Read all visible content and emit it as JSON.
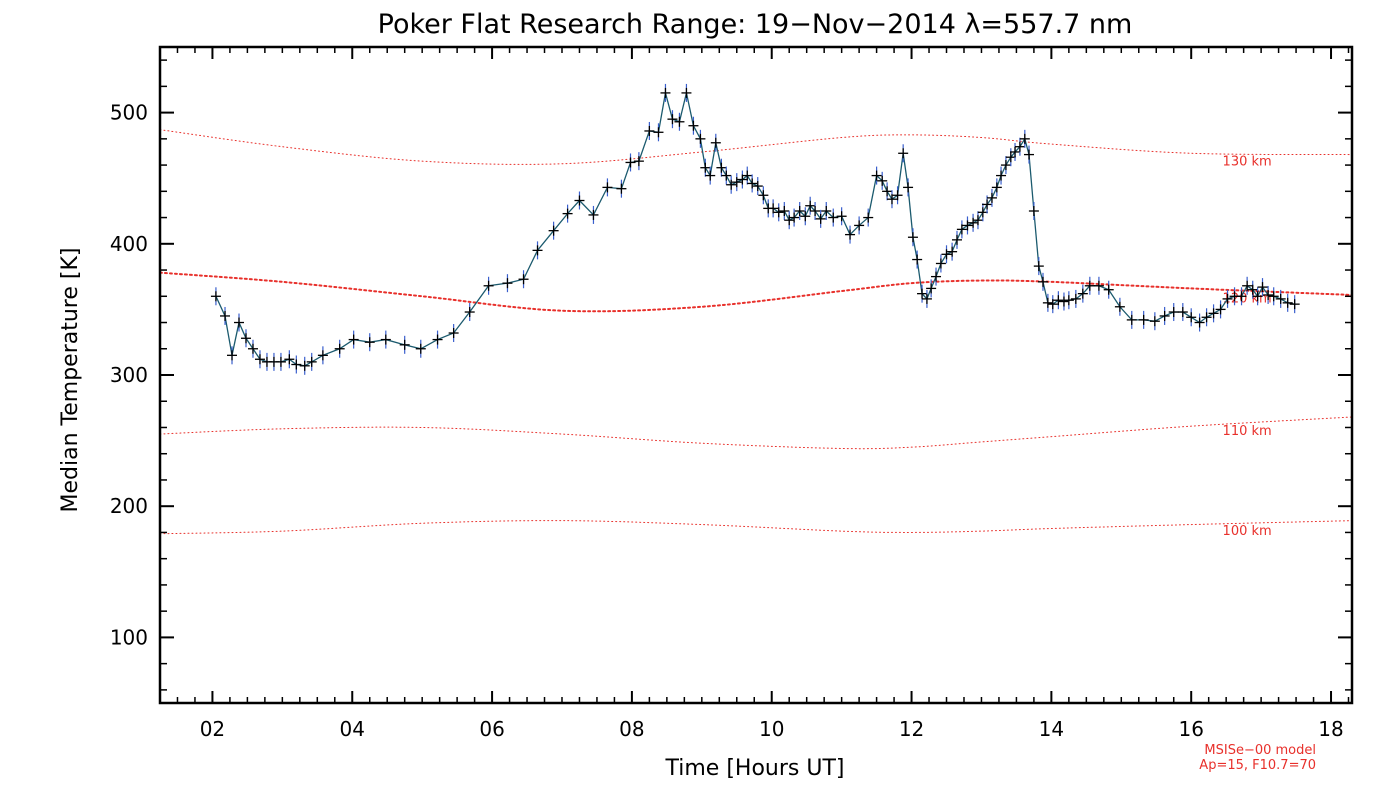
{
  "chart_data": {
    "type": "line",
    "title": "Poker Flat Research Range: 19−Nov−2014 λ=557.7 nm",
    "xlabel": "Time [Hours UT]",
    "ylabel": "Median Temperature [K]",
    "xlim": [
      1.25,
      18.3
    ],
    "ylim": [
      50,
      550
    ],
    "x_ticks": [
      2,
      4,
      6,
      8,
      10,
      12,
      14,
      16,
      18
    ],
    "x_tick_labels": [
      "02",
      "04",
      "06",
      "08",
      "10",
      "12",
      "14",
      "16",
      "18"
    ],
    "y_ticks": [
      100,
      200,
      300,
      400,
      500
    ],
    "y_tick_labels": [
      "100",
      "200",
      "300",
      "400",
      "500"
    ],
    "grid": false,
    "series": [
      {
        "name": "",
        "color": "#0a2a5e",
        "marker": "plus",
        "x": [
          2.05,
          2.18,
          2.28,
          2.38,
          2.48,
          2.58,
          2.68,
          2.78,
          2.88,
          2.98,
          3.1,
          3.2,
          3.32,
          3.42,
          3.58,
          3.82,
          4.02,
          4.25,
          4.48,
          4.75,
          4.98,
          5.22,
          5.45,
          5.68,
          5.95,
          6.22,
          6.45,
          6.65,
          6.88,
          7.08,
          7.25,
          7.45,
          7.65,
          7.85,
          7.98,
          8.1,
          8.25,
          8.38,
          8.48,
          8.58,
          8.68,
          8.78,
          8.88,
          8.98,
          9.05,
          9.12,
          9.2,
          9.28,
          9.35,
          9.42,
          9.5,
          9.58,
          9.65,
          9.72,
          9.8,
          9.88,
          9.95,
          10.02,
          10.1,
          10.18,
          10.25,
          10.32,
          10.4,
          10.48,
          10.55,
          10.62,
          10.7,
          10.78,
          10.88,
          11.0,
          11.12,
          11.25,
          11.38,
          11.5,
          11.58,
          11.65,
          11.72,
          11.8,
          11.88,
          11.95,
          12.02,
          12.08,
          12.15,
          12.22,
          12.28,
          12.35,
          12.42,
          12.5,
          12.58,
          12.65,
          12.72,
          12.8,
          12.88,
          12.95,
          13.02,
          13.08,
          13.15,
          13.22,
          13.28,
          13.35,
          13.42,
          13.48,
          13.55,
          13.62,
          13.68,
          13.75,
          13.82,
          13.88,
          13.95,
          14.02,
          14.1,
          14.18,
          14.25,
          14.35,
          14.45,
          14.55,
          14.68,
          14.82,
          14.98,
          15.15,
          15.32,
          15.48,
          15.62,
          15.75,
          15.88,
          16.0,
          16.12,
          16.22,
          16.32,
          16.42,
          16.52,
          16.62,
          16.72,
          16.8,
          16.88,
          16.95,
          17.02,
          17.1,
          17.18,
          17.28,
          17.38,
          17.48
        ],
        "values": [
          360,
          345,
          315,
          340,
          328,
          320,
          312,
          310,
          310,
          310,
          312,
          308,
          307,
          310,
          315,
          320,
          327,
          325,
          327,
          323,
          320,
          327,
          332,
          348,
          368,
          370,
          373,
          395,
          410,
          423,
          433,
          422,
          443,
          442,
          462,
          463,
          486,
          485,
          515,
          495,
          493,
          515,
          490,
          480,
          458,
          452,
          477,
          458,
          452,
          445,
          447,
          449,
          452,
          446,
          444,
          437,
          427,
          427,
          424,
          425,
          418,
          420,
          425,
          421,
          429,
          425,
          419,
          425,
          420,
          421,
          407,
          414,
          420,
          452,
          448,
          440,
          434,
          437,
          469,
          443,
          405,
          388,
          362,
          358,
          366,
          375,
          385,
          392,
          394,
          403,
          411,
          414,
          416,
          418,
          424,
          430,
          435,
          443,
          452,
          460,
          466,
          470,
          474,
          480,
          468,
          425,
          383,
          371,
          355,
          354,
          357,
          356,
          357,
          358,
          362,
          368,
          368,
          365,
          352,
          342,
          342,
          341,
          345,
          348,
          348,
          344,
          340,
          344,
          347,
          350,
          358,
          360,
          360,
          368,
          365,
          360,
          367,
          361,
          360,
          358,
          355,
          354
        ]
      }
    ],
    "model_curves": [
      {
        "label": "130 km",
        "x": [
          1.25,
          3,
          5,
          7,
          9,
          11,
          12,
          13,
          14,
          16,
          18.3
        ],
        "values": [
          487,
          474,
          463,
          461,
          470,
          481,
          483,
          481,
          476,
          469,
          468
        ]
      },
      {
        "label": "120 km",
        "x": [
          1.25,
          3,
          5,
          7,
          9,
          11,
          12,
          13,
          14,
          16,
          18.3
        ],
        "values": [
          378,
          371,
          360,
          349,
          352,
          364,
          370,
          372,
          371,
          366,
          361
        ]
      },
      {
        "label": "110 km",
        "x": [
          1.25,
          3,
          5,
          7,
          9,
          11,
          12,
          13,
          14,
          16,
          18.3
        ],
        "values": [
          255,
          259,
          260,
          255,
          248,
          244,
          245,
          249,
          253,
          261,
          268
        ]
      },
      {
        "label": "100 km",
        "x": [
          1.25,
          3,
          5,
          7,
          9,
          11,
          12,
          13,
          14,
          16,
          18.3
        ],
        "values": [
          179,
          181,
          187,
          189,
          186,
          181,
          180,
          181,
          183,
          186,
          189
        ]
      }
    ],
    "model_label_x": 16.8,
    "model_colors": {
      "dotted": "#e8302b"
    },
    "note_lines": [
      "MSISe−00 model",
      "Ap=15, F10.7=70"
    ]
  }
}
